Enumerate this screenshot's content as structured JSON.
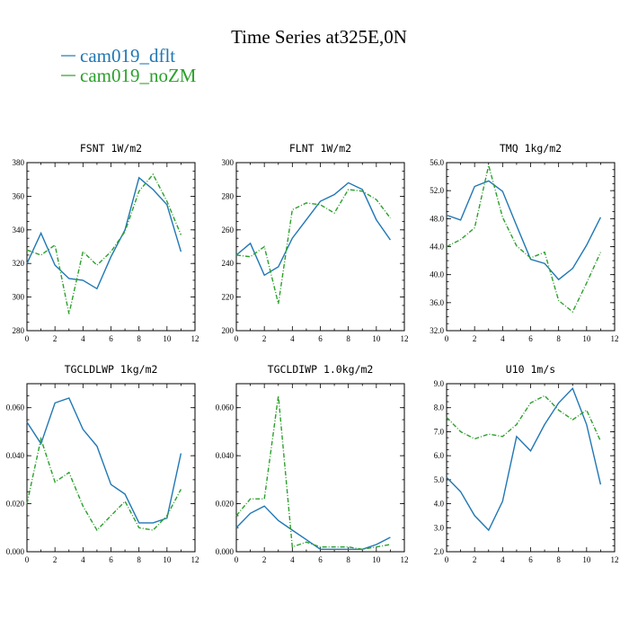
{
  "figure": {
    "title": "Time Series at325E,0N",
    "legend": [
      {
        "label": "cam019_dflt",
        "color": "#1f77b4"
      },
      {
        "label": "cam019_noZM",
        "color": "#2ca02c"
      }
    ]
  },
  "chart_data": [
    {
      "type": "line",
      "title": "FSNT   1W/m2",
      "x": [
        0,
        1,
        2,
        3,
        4,
        5,
        6,
        7,
        8,
        9,
        10,
        11
      ],
      "xlim": [
        0,
        12
      ],
      "xticks": [
        0,
        2,
        4,
        6,
        8,
        10,
        12
      ],
      "ylim": [
        280,
        380
      ],
      "yticks": [
        280,
        300,
        320,
        340,
        360,
        380
      ],
      "ytick_labels": [
        "280",
        "300",
        "320",
        "340",
        "360",
        "380"
      ],
      "series": [
        {
          "name": "cam019_dflt",
          "color": "#1f77b4",
          "dash": "",
          "values": [
            320,
            338,
            319,
            311,
            310,
            305,
            324,
            340,
            371,
            364,
            355,
            327
          ]
        },
        {
          "name": "cam019_noZM",
          "color": "#2ca02c",
          "dash": "5,2,1,2",
          "values": [
            328,
            325,
            331,
            290,
            327,
            319,
            327,
            339,
            363,
            373,
            357,
            337
          ]
        }
      ]
    },
    {
      "type": "line",
      "title": "FLNT   1W/m2",
      "x": [
        0,
        1,
        2,
        3,
        4,
        5,
        6,
        7,
        8,
        9,
        10,
        11
      ],
      "xlim": [
        0,
        12
      ],
      "xticks": [
        0,
        2,
        4,
        6,
        8,
        10,
        12
      ],
      "ylim": [
        200,
        300
      ],
      "yticks": [
        200,
        220,
        240,
        260,
        280,
        300
      ],
      "ytick_labels": [
        "200",
        "220",
        "240",
        "260",
        "280",
        "300"
      ],
      "series": [
        {
          "name": "cam019_dflt",
          "color": "#1f77b4",
          "dash": "",
          "values": [
            245,
            252,
            233,
            238,
            255,
            266,
            277,
            281,
            288,
            284,
            266,
            254
          ]
        },
        {
          "name": "cam019_noZM",
          "color": "#2ca02c",
          "dash": "5,2,1,2",
          "values": [
            245,
            244,
            250,
            216,
            272,
            276,
            275,
            270,
            284,
            283,
            278,
            267
          ]
        }
      ]
    },
    {
      "type": "line",
      "title": "TMQ   1kg/m2",
      "x": [
        0,
        1,
        2,
        3,
        4,
        5,
        6,
        7,
        8,
        9,
        10,
        11
      ],
      "xlim": [
        0,
        12
      ],
      "xticks": [
        0,
        2,
        4,
        6,
        8,
        10,
        12
      ],
      "ylim": [
        32,
        56
      ],
      "yticks": [
        32,
        36,
        40,
        44,
        48,
        52,
        56
      ],
      "ytick_labels": [
        "32.0",
        "36.0",
        "40.0",
        "44.0",
        "48.0",
        "52.0",
        "56.0"
      ],
      "series": [
        {
          "name": "cam019_dflt",
          "color": "#1f77b4",
          "dash": "",
          "values": [
            48.5,
            47.8,
            52.6,
            53.4,
            51.9,
            47.0,
            42.2,
            41.6,
            39.3,
            40.9,
            44.2,
            48.2
          ]
        },
        {
          "name": "cam019_noZM",
          "color": "#2ca02c",
          "dash": "5,2,1,2",
          "values": [
            44.0,
            45.0,
            46.7,
            55.6,
            48.2,
            44.1,
            42.4,
            43.2,
            36.3,
            34.7,
            38.8,
            43.2
          ]
        }
      ]
    },
    {
      "type": "line",
      "title": "TGCLDLWP   1kg/m2",
      "x": [
        0,
        1,
        2,
        3,
        4,
        5,
        6,
        7,
        8,
        9,
        10,
        11
      ],
      "xlim": [
        0,
        12
      ],
      "xticks": [
        0,
        2,
        4,
        6,
        8,
        10,
        12
      ],
      "ylim": [
        0,
        0.07
      ],
      "yticks": [
        0,
        0.02,
        0.04,
        0.06
      ],
      "ytick_labels": [
        "0.000",
        "0.020",
        "0.040",
        "0.060"
      ],
      "series": [
        {
          "name": "cam019_dflt",
          "color": "#1f77b4",
          "dash": "",
          "values": [
            0.054,
            0.045,
            0.062,
            0.064,
            0.051,
            0.044,
            0.028,
            0.024,
            0.012,
            0.012,
            0.014,
            0.041
          ]
        },
        {
          "name": "cam019_noZM",
          "color": "#2ca02c",
          "dash": "5,2,1,2",
          "values": [
            0.02,
            0.047,
            0.029,
            0.033,
            0.019,
            0.009,
            0.015,
            0.021,
            0.01,
            0.009,
            0.015,
            0.026
          ]
        }
      ]
    },
    {
      "type": "line",
      "title": "TGCLDIWP   1.0kg/m2",
      "x": [
        0,
        1,
        2,
        3,
        4,
        5,
        6,
        7,
        8,
        9,
        10,
        11
      ],
      "xlim": [
        0,
        12
      ],
      "xticks": [
        0,
        2,
        4,
        6,
        8,
        10,
        12
      ],
      "ylim": [
        0,
        0.07
      ],
      "yticks": [
        0,
        0.02,
        0.04,
        0.06
      ],
      "ytick_labels": [
        "0.000",
        "0.020",
        "0.040",
        "0.060"
      ],
      "series": [
        {
          "name": "cam019_dflt",
          "color": "#1f77b4",
          "dash": "",
          "values": [
            0.01,
            0.016,
            0.019,
            0.013,
            0.009,
            0.005,
            0.001,
            0.001,
            0.001,
            0.001,
            0.003,
            0.006
          ]
        },
        {
          "name": "cam019_noZM",
          "color": "#2ca02c",
          "dash": "5,2,1,2",
          "values": [
            0.015,
            0.022,
            0.022,
            0.065,
            0.002,
            0.004,
            0.002,
            0.002,
            0.002,
            0.001,
            0.002,
            0.003
          ]
        }
      ]
    },
    {
      "type": "line",
      "title": "U10   1m/s",
      "x": [
        0,
        1,
        2,
        3,
        4,
        5,
        6,
        7,
        8,
        9,
        10,
        11
      ],
      "xlim": [
        0,
        12
      ],
      "xticks": [
        0,
        2,
        4,
        6,
        8,
        10,
        12
      ],
      "ylim": [
        2,
        9
      ],
      "yticks": [
        2,
        3,
        4,
        5,
        6,
        7,
        8,
        9
      ],
      "ytick_labels": [
        "2.0",
        "3.0",
        "4.0",
        "5.0",
        "6.0",
        "7.0",
        "8.0",
        "9.0"
      ],
      "series": [
        {
          "name": "cam019_dflt",
          "color": "#1f77b4",
          "dash": "",
          "values": [
            5.1,
            4.5,
            3.5,
            2.9,
            4.1,
            6.8,
            6.2,
            7.3,
            8.2,
            8.8,
            7.3,
            4.8
          ]
        },
        {
          "name": "cam019_noZM",
          "color": "#2ca02c",
          "dash": "5,2,1,2",
          "values": [
            7.6,
            7.0,
            6.7,
            6.9,
            6.8,
            7.3,
            8.2,
            8.5,
            7.9,
            7.5,
            7.9,
            6.6
          ]
        }
      ]
    }
  ]
}
